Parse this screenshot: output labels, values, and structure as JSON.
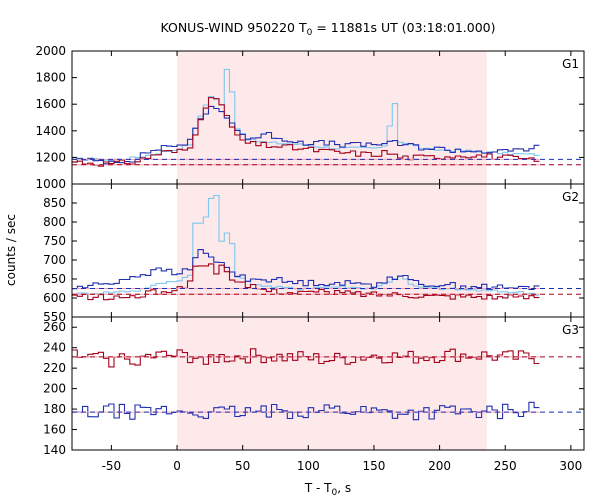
{
  "chart_data": {
    "type": "line",
    "title_main": "KONUS-WIND 950220 T",
    "title_sub": "0",
    "title_rest": " = 11881s UT (03:18:01.000)",
    "xlabel_main": "T - T",
    "xlabel_sub": "0",
    "xlabel_rest": ", s",
    "ylabel": "counts / sec",
    "xlim": [
      -80,
      310
    ],
    "xticks": [
      -50,
      0,
      50,
      100,
      150,
      200,
      250,
      300
    ],
    "highlight": {
      "start": 0,
      "end": 236,
      "color": "#fde8ea"
    },
    "colors": {
      "light": "#7ec8f0",
      "blue": "#1f2fb0",
      "red": "#a3001b",
      "fit": "#f4a0b0"
    },
    "panels": [
      {
        "label": "G1",
        "ylim": [
          1000,
          2000
        ],
        "yticks": [
          1000,
          1200,
          1400,
          1600,
          1800,
          2000
        ],
        "bg_levels": {
          "blue": 1185,
          "red": 1145
        },
        "anchors": {
          "light": [
            [
              -80,
              1190
            ],
            [
              -50,
              1180
            ],
            [
              -30,
              1200
            ],
            [
              -10,
              1240
            ],
            [
              0,
              1260
            ],
            [
              10,
              1300
            ],
            [
              15,
              1440
            ],
            [
              20,
              1560
            ],
            [
              25,
              1660
            ],
            [
              30,
              1640
            ],
            [
              35,
              1580
            ],
            [
              38,
              1860
            ],
            [
              42,
              1700
            ],
            [
              46,
              1420
            ],
            [
              55,
              1330
            ],
            [
              70,
              1310
            ],
            [
              90,
              1300
            ],
            [
              120,
              1270
            ],
            [
              150,
              1270
            ],
            [
              160,
              1280
            ],
            [
              165,
              1680
            ],
            [
              170,
              1320
            ],
            [
              190,
              1260
            ],
            [
              220,
              1250
            ],
            [
              250,
              1230
            ],
            [
              276,
              1220
            ]
          ],
          "blue": [
            [
              -80,
              1180
            ],
            [
              -50,
              1170
            ],
            [
              -30,
              1190
            ],
            [
              -20,
              1250
            ],
            [
              -10,
              1280
            ],
            [
              0,
              1290
            ],
            [
              10,
              1320
            ],
            [
              15,
              1420
            ],
            [
              20,
              1520
            ],
            [
              25,
              1580
            ],
            [
              30,
              1560
            ],
            [
              35,
              1540
            ],
            [
              40,
              1500
            ],
            [
              45,
              1410
            ],
            [
              55,
              1340
            ],
            [
              70,
              1370
            ],
            [
              90,
              1320
            ],
            [
              120,
              1300
            ],
            [
              140,
              1290
            ],
            [
              160,
              1310
            ],
            [
              170,
              1300
            ],
            [
              190,
              1270
            ],
            [
              220,
              1250
            ],
            [
              250,
              1240
            ],
            [
              276,
              1280
            ]
          ],
          "red": [
            [
              -80,
              1170
            ],
            [
              -50,
              1150
            ],
            [
              -30,
              1170
            ],
            [
              -20,
              1210
            ],
            [
              -10,
              1240
            ],
            [
              0,
              1240
            ],
            [
              10,
              1270
            ],
            [
              15,
              1420
            ],
            [
              20,
              1560
            ],
            [
              25,
              1640
            ],
            [
              30,
              1620
            ],
            [
              35,
              1600
            ],
            [
              40,
              1460
            ],
            [
              45,
              1360
            ],
            [
              55,
              1300
            ],
            [
              70,
              1290
            ],
            [
              90,
              1270
            ],
            [
              120,
              1240
            ],
            [
              150,
              1220
            ],
            [
              160,
              1240
            ],
            [
              170,
              1200
            ],
            [
              190,
              1200
            ],
            [
              220,
              1220
            ],
            [
              250,
              1200
            ],
            [
              276,
              1170
            ]
          ]
        }
      },
      {
        "label": "G2",
        "ylim": [
          550,
          900
        ],
        "yticks": [
          550,
          600,
          650,
          700,
          750,
          800,
          850
        ],
        "bg_levels": {
          "blue": 625,
          "red": 610
        },
        "anchors": {
          "light": [
            [
              -80,
              610
            ],
            [
              -50,
              615
            ],
            [
              -30,
              620
            ],
            [
              -10,
              640
            ],
            [
              0,
              645
            ],
            [
              10,
              660
            ],
            [
              12,
              760
            ],
            [
              15,
              820
            ],
            [
              20,
              780
            ],
            [
              25,
              860
            ],
            [
              30,
              870
            ],
            [
              35,
              720
            ],
            [
              40,
              800
            ],
            [
              45,
              660
            ],
            [
              55,
              640
            ],
            [
              70,
              630
            ],
            [
              90,
              625
            ],
            [
              120,
              630
            ],
            [
              150,
              625
            ],
            [
              160,
              640
            ],
            [
              170,
              660
            ],
            [
              180,
              630
            ],
            [
              200,
              625
            ],
            [
              230,
              620
            ],
            [
              260,
              615
            ],
            [
              276,
              610
            ]
          ],
          "blue": [
            [
              -80,
              625
            ],
            [
              -50,
              640
            ],
            [
              -30,
              660
            ],
            [
              -10,
              675
            ],
            [
              0,
              660
            ],
            [
              10,
              680
            ],
            [
              15,
              720
            ],
            [
              20,
              720
            ],
            [
              25,
              710
            ],
            [
              30,
              690
            ],
            [
              35,
              700
            ],
            [
              40,
              670
            ],
            [
              45,
              660
            ],
            [
              55,
              650
            ],
            [
              70,
              650
            ],
            [
              90,
              640
            ],
            [
              120,
              640
            ],
            [
              150,
              635
            ],
            [
              160,
              650
            ],
            [
              170,
              660
            ],
            [
              180,
              640
            ],
            [
              200,
              635
            ],
            [
              230,
              630
            ],
            [
              260,
              625
            ],
            [
              276,
              630
            ]
          ],
          "red": [
            [
              -80,
              605
            ],
            [
              -50,
              600
            ],
            [
              -30,
              605
            ],
            [
              -10,
              620
            ],
            [
              0,
              620
            ],
            [
              10,
              640
            ],
            [
              15,
              700
            ],
            [
              20,
              680
            ],
            [
              25,
              690
            ],
            [
              30,
              670
            ],
            [
              35,
              700
            ],
            [
              40,
              640
            ],
            [
              45,
              640
            ],
            [
              55,
              630
            ],
            [
              70,
              620
            ],
            [
              90,
              615
            ],
            [
              120,
              615
            ],
            [
              150,
              610
            ],
            [
              170,
              610
            ],
            [
              200,
              605
            ],
            [
              230,
              605
            ],
            [
              260,
              600
            ],
            [
              276,
              605
            ]
          ]
        }
      },
      {
        "label": "G3",
        "ylim": [
          140,
          270
        ],
        "yticks": [
          140,
          160,
          180,
          200,
          220,
          240,
          260
        ],
        "bg_levels": {
          "blue": 177,
          "red": 231
        },
        "anchors": {
          "blue": [
            [
              -80,
              175
            ],
            [
              -50,
              178
            ],
            [
              -30,
              177
            ],
            [
              -10,
              178
            ],
            [
              0,
              178
            ],
            [
              30,
              176
            ],
            [
              60,
              177
            ],
            [
              90,
              178
            ],
            [
              120,
              180
            ],
            [
              150,
              178
            ],
            [
              180,
              176
            ],
            [
              210,
              178
            ],
            [
              236,
              176
            ],
            [
              250,
              178
            ],
            [
              276,
              182
            ]
          ],
          "red": [
            [
              -80,
              232
            ],
            [
              -50,
              228
            ],
            [
              -30,
              230
            ],
            [
              -10,
              232
            ],
            [
              0,
              232
            ],
            [
              30,
              230
            ],
            [
              60,
              232
            ],
            [
              90,
              230
            ],
            [
              120,
              228
            ],
            [
              150,
              232
            ],
            [
              180,
              230
            ],
            [
              210,
              233
            ],
            [
              236,
              232
            ],
            [
              250,
              230
            ],
            [
              276,
              230
            ]
          ]
        }
      }
    ]
  }
}
